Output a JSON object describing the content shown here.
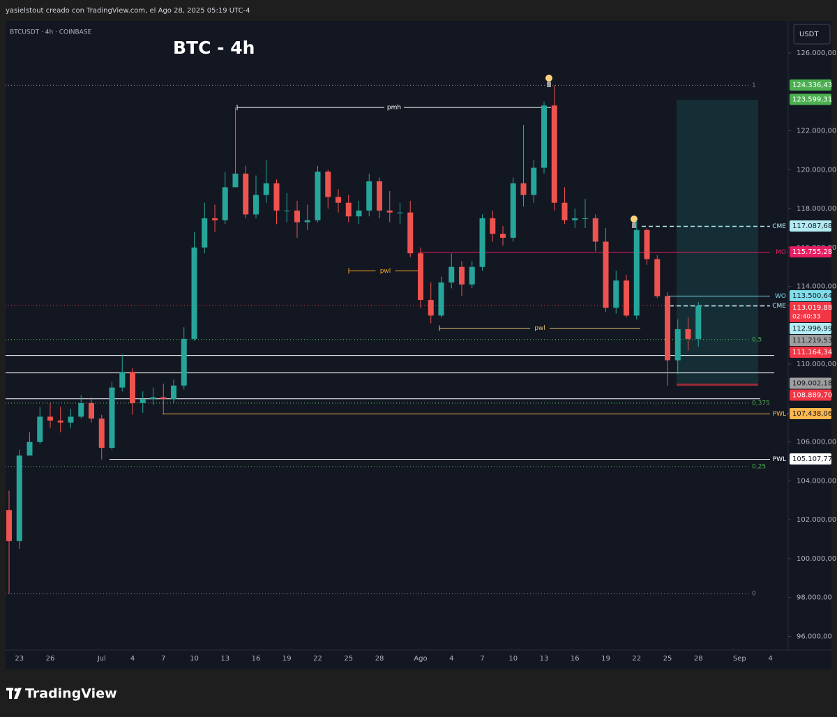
{
  "header": {
    "text": "yasielstout creado con TradingView.com, el Ago 28, 2025 05:19 UTC-4"
  },
  "footer": {
    "brand": "TradingView"
  },
  "chart_data": {
    "type": "candlestick",
    "symbol": "BTCUSDT · 4h · COINBASE",
    "title": "BTC - 4h",
    "currency": "USDT",
    "categories": [
      null,
      "23",
      null,
      null,
      "26",
      null,
      null,
      null,
      null,
      "Jul",
      null,
      null,
      "4",
      null,
      null,
      "7",
      null,
      null,
      "10",
      null,
      null,
      "13",
      null,
      null,
      "16",
      null,
      null,
      "19",
      null,
      null,
      "22",
      null,
      null,
      "25",
      null,
      null,
      "28",
      null,
      null,
      null,
      "Ago",
      null,
      null,
      "4",
      null,
      null,
      "7",
      null,
      null,
      "10",
      null,
      null,
      "13",
      null,
      null,
      "16",
      null,
      null,
      "19",
      null,
      null,
      "22",
      null,
      null,
      "25",
      null,
      null,
      "28",
      null,
      null,
      null,
      "Sep",
      null,
      null,
      "4",
      null
    ],
    "open": [
      102500,
      100900,
      105300,
      106000,
      107300,
      107100,
      107000,
      107300,
      108000,
      107200,
      105700,
      108800,
      109600,
      108000,
      108200,
      108300,
      108200,
      108900,
      111300,
      116000,
      117500,
      117400,
      119100,
      119800,
      117700,
      118700,
      119300,
      117900,
      117900,
      117300,
      117400,
      119900,
      118600,
      118300,
      117600,
      117900,
      119400,
      117900,
      117800,
      117800,
      115700,
      113300,
      112500,
      114200,
      115000,
      114100,
      115000,
      117500,
      116700,
      116500,
      119300,
      118700,
      120100,
      123300,
      118300,
      117400,
      117500,
      117500,
      116300,
      112900,
      114300,
      112500,
      116900,
      115400,
      113500,
      110200,
      111800,
      111300,
      null,
      null,
      null,
      null,
      null,
      null,
      null,
      null
    ],
    "high": [
      103500,
      105600,
      106500,
      107800,
      108000,
      107800,
      107700,
      108400,
      108300,
      107400,
      109100,
      110500,
      109800,
      108600,
      108800,
      109000,
      109200,
      111900,
      116800,
      118300,
      118200,
      119900,
      123200,
      120200,
      119700,
      120500,
      119500,
      118800,
      118400,
      118200,
      120200,
      120000,
      119000,
      118700,
      118400,
      119800,
      119600,
      118900,
      118300,
      118400,
      116000,
      114200,
      114500,
      115700,
      115300,
      115300,
      117700,
      117900,
      117100,
      119600,
      122300,
      120500,
      123500,
      124336,
      119100,
      118000,
      118500,
      117700,
      117000,
      114800,
      114600,
      117400,
      117000,
      115600,
      113700,
      112300,
      112400,
      113200,
      null,
      null,
      null,
      null,
      null,
      null,
      null,
      null
    ],
    "low": [
      98200,
      100500,
      105300,
      105900,
      106700,
      106500,
      106700,
      107200,
      107000,
      105100,
      105600,
      108600,
      107400,
      107500,
      107900,
      107400,
      108000,
      108700,
      111200,
      115700,
      116800,
      117200,
      119100,
      117500,
      117500,
      118300,
      117200,
      117300,
      116500,
      116900,
      117300,
      118000,
      117800,
      117300,
      117200,
      117600,
      117500,
      117300,
      117200,
      115500,
      112900,
      112100,
      112400,
      113900,
      113500,
      113900,
      114800,
      116300,
      116100,
      116300,
      118100,
      118300,
      119800,
      117900,
      117200,
      117000,
      117000,
      115800,
      112700,
      112600,
      112400,
      112300,
      115100,
      113400,
      108900,
      109500,
      110700,
      110900,
      null,
      null,
      null,
      null,
      null,
      null,
      null,
      null
    ],
    "close": [
      100900,
      105300,
      106000,
      107300,
      107100,
      107000,
      107300,
      108000,
      107200,
      105700,
      108800,
      109600,
      108000,
      108200,
      108300,
      108200,
      108900,
      111300,
      116000,
      117500,
      117400,
      119100,
      119800,
      117700,
      118700,
      119300,
      117900,
      117900,
      117300,
      117400,
      119900,
      118600,
      118300,
      117600,
      117900,
      119400,
      117900,
      117800,
      117800,
      115700,
      113300,
      112500,
      114200,
      115000,
      114100,
      115000,
      117500,
      116700,
      116500,
      119300,
      118700,
      120100,
      123300,
      118300,
      117400,
      117500,
      117500,
      116300,
      112900,
      114300,
      112500,
      116900,
      115400,
      113500,
      110200,
      111800,
      111300,
      113000,
      null,
      null,
      null,
      null,
      null,
      null,
      null,
      null
    ],
    "up_color": "#26a69a",
    "down_color": "#ef5350",
    "ylim": [
      95300,
      127650
    ],
    "yticks": [
      {
        "value": 126000,
        "label": "126.000,00"
      },
      {
        "value": 122000,
        "label": "122.000,00"
      },
      {
        "value": 120000,
        "label": "120.000,00"
      },
      {
        "value": 118000,
        "label": "118.000,00"
      },
      {
        "value": 116000,
        "label": "116.000,00"
      },
      {
        "value": 114000,
        "label": "114.000,00"
      },
      {
        "value": 110000,
        "label": "110.000,00"
      },
      {
        "value": 106000,
        "label": "106.000,00"
      },
      {
        "value": 104000,
        "label": "104.000,00"
      },
      {
        "value": 102000,
        "label": "102.000,00"
      },
      {
        "value": 100000,
        "label": "100.000,00"
      },
      {
        "value": 98000,
        "label": "98.000,00"
      },
      {
        "value": 96000,
        "label": "96.000,00"
      }
    ],
    "fib_levels": [
      {
        "value": 124336.43,
        "label": "1",
        "color": "#787b86"
      },
      {
        "value": 111268,
        "label": "0,5",
        "color": "#4caf50"
      },
      {
        "value": 108001,
        "label": "0,375",
        "color": "#4caf50"
      },
      {
        "value": 104734,
        "label": "0,25",
        "color": "#4caf50"
      },
      {
        "value": 98200,
        "label": "0",
        "color": "#787b86"
      }
    ],
    "annotations": [
      {
        "text": "pmh",
        "value": 123200,
        "color": "#ffffff"
      },
      {
        "text": "pwl",
        "value": 114800,
        "color": "#f5a623"
      },
      {
        "text": "pwl",
        "value": 111850,
        "color": "#e0c070"
      }
    ],
    "plain_lines": [
      110450,
      109550,
      108220
    ],
    "price_labels": [
      {
        "value": 124336.43,
        "label": "124.336,43",
        "color": "#4caf50"
      },
      {
        "value": 123599.31,
        "label": "123.599,31",
        "color": "#4caf50"
      },
      {
        "value": 117087.68,
        "label": "117.087,68",
        "color": "#b2ebf2",
        "tag": "CME"
      },
      {
        "value": 115755.28,
        "label": "115.755,28",
        "color": "#e91e63",
        "tag": "MO"
      },
      {
        "value": 113500.64,
        "label": "113.500,64",
        "color": "#80deea",
        "tag": "WO"
      },
      {
        "value": 113019.88,
        "label": "113.019,88",
        "color": "#f23645",
        "countdown": "02:40:33"
      },
      {
        "value": 112996.99,
        "label": "112.996,99",
        "color": "#b2ebf2",
        "tag": "CME"
      },
      {
        "value": 111219.53,
        "label": "111.219,53",
        "color": "#9e9e9e"
      },
      {
        "value": 111164.34,
        "label": "111.164,34",
        "color": "#f23645"
      },
      {
        "value": 109002.18,
        "label": "109.002,18",
        "color": "#9e9e9e"
      },
      {
        "value": 108889.7,
        "label": "108.889,70",
        "color": "#f23645"
      },
      {
        "value": 107438.06,
        "label": "107.438,06",
        "color": "#ffb74d",
        "tag": "PWL"
      },
      {
        "value": 105107.77,
        "label": "105.107,77",
        "color": "#ffffff",
        "tag": "PWL"
      }
    ]
  }
}
